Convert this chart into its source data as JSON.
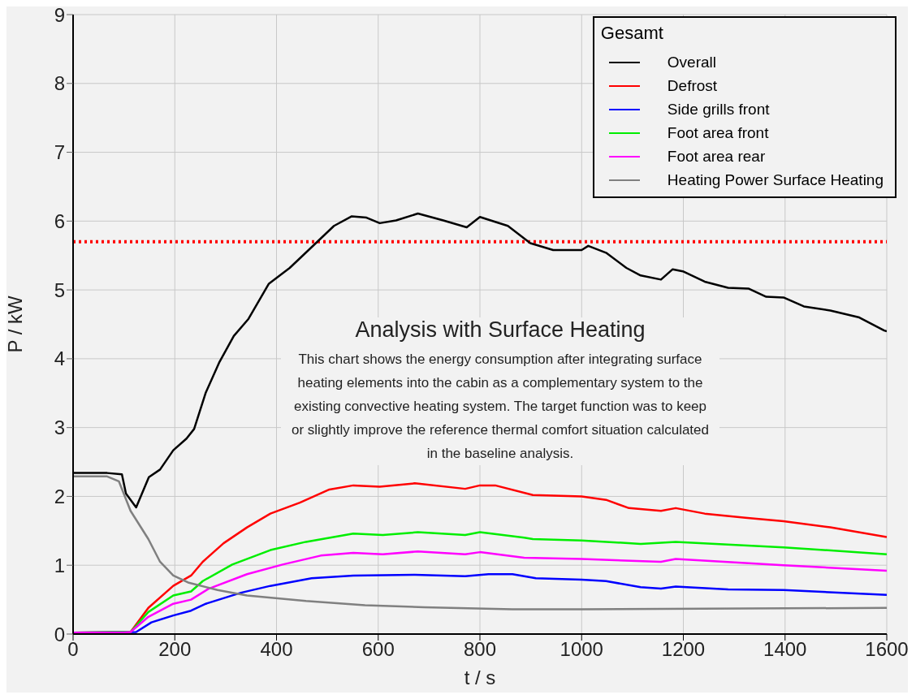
{
  "chart_data": {
    "type": "line",
    "xlabel": "t / s",
    "ylabel": "P / kW",
    "legend_title": "Gesamt",
    "legend": "top right",
    "grid": true,
    "line_style": "solid",
    "marker": "none",
    "xlim": [
      0,
      1600
    ],
    "xticks": [
      0,
      200,
      400,
      600,
      800,
      1000,
      1200,
      1400,
      1600
    ],
    "ylim": [
      0,
      9
    ],
    "yticks": [
      0,
      1,
      2,
      3,
      4,
      5,
      6,
      7,
      8,
      9
    ],
    "ref_lines": [
      {
        "axis": "y",
        "value": 5.7,
        "color": "#ff0000",
        "line_style": "dotted"
      }
    ],
    "annotations": [
      "Analysis with Surface Heating",
      "This chart shows the energy consumption after integrating surface heating elements into the cabin as a complementary system to the existing convective heating system. The target function was to keep or slightly improve the reference thermal comfort situation calculated in the baseline analysis."
    ],
    "series": [
      {
        "name": "Overall",
        "color": "#000000",
        "x": [
          0,
          67,
          96,
          104,
          124,
          149,
          171,
          197,
          223,
          238,
          261,
          287,
          316,
          345,
          385,
          426,
          466,
          513,
          548,
          577,
          603,
          635,
          678,
          728,
          774,
          800,
          855,
          899,
          944,
          1000,
          1013,
          1048,
          1088,
          1116,
          1156,
          1179,
          1199,
          1242,
          1288,
          1328,
          1363,
          1397,
          1437,
          1489,
          1546,
          1595,
          1600
        ],
        "values": [
          2.34,
          2.34,
          2.32,
          2.04,
          1.84,
          2.28,
          2.39,
          2.67,
          2.84,
          2.98,
          3.51,
          3.94,
          4.33,
          4.58,
          5.09,
          5.32,
          5.6,
          5.93,
          6.07,
          6.05,
          5.97,
          6.01,
          6.11,
          6.01,
          5.91,
          6.06,
          5.93,
          5.68,
          5.58,
          5.58,
          5.64,
          5.54,
          5.32,
          5.21,
          5.15,
          5.3,
          5.27,
          5.12,
          5.03,
          5.02,
          4.9,
          4.89,
          4.76,
          4.7,
          4.6,
          4.41,
          4.4
        ]
      },
      {
        "name": "Defrost",
        "color": "#ff0000",
        "x": [
          0,
          113,
          148,
          197,
          232,
          255,
          296,
          342,
          388,
          446,
          504,
          551,
          603,
          672,
          771,
          800,
          830,
          904,
          1000,
          1048,
          1093,
          1156,
          1185,
          1242,
          1322,
          1397,
          1489,
          1600
        ],
        "values": [
          0.02,
          0.03,
          0.38,
          0.7,
          0.85,
          1.05,
          1.32,
          1.55,
          1.75,
          1.91,
          2.1,
          2.16,
          2.14,
          2.19,
          2.11,
          2.16,
          2.16,
          2.02,
          2.0,
          1.95,
          1.83,
          1.79,
          1.83,
          1.75,
          1.69,
          1.64,
          1.55,
          1.41
        ]
      },
      {
        "name": "Side grills front",
        "color": "#0000ff",
        "x": [
          0,
          124,
          154,
          197,
          232,
          261,
          330,
          388,
          469,
          551,
          672,
          771,
          817,
          864,
          910,
          1000,
          1048,
          1116,
          1156,
          1185,
          1288,
          1397,
          1600
        ],
        "values": [
          0.02,
          0.03,
          0.17,
          0.27,
          0.34,
          0.44,
          0.6,
          0.7,
          0.81,
          0.85,
          0.86,
          0.84,
          0.87,
          0.87,
          0.81,
          0.79,
          0.77,
          0.68,
          0.66,
          0.69,
          0.65,
          0.64,
          0.57
        ]
      },
      {
        "name": "Foot area front",
        "color": "#00ee00",
        "x": [
          0,
          113,
          148,
          197,
          232,
          255,
          313,
          388,
          458,
          551,
          609,
          678,
          771,
          800,
          887,
          904,
          1000,
          1116,
          1185,
          1397,
          1600
        ],
        "values": [
          0.02,
          0.03,
          0.32,
          0.56,
          0.62,
          0.77,
          1.01,
          1.22,
          1.34,
          1.46,
          1.44,
          1.48,
          1.44,
          1.48,
          1.4,
          1.38,
          1.36,
          1.31,
          1.34,
          1.26,
          1.16
        ]
      },
      {
        "name": "Foot area rear",
        "color": "#ff00ff",
        "x": [
          0,
          100,
          113,
          148,
          197,
          232,
          267,
          342,
          412,
          487,
          551,
          609,
          678,
          771,
          800,
          887,
          1000,
          1156,
          1185,
          1397,
          1600
        ],
        "values": [
          0.02,
          0.02,
          0.03,
          0.25,
          0.44,
          0.5,
          0.66,
          0.87,
          1.01,
          1.14,
          1.18,
          1.16,
          1.2,
          1.16,
          1.19,
          1.11,
          1.09,
          1.05,
          1.09,
          1.0,
          0.92
        ]
      },
      {
        "name": "Heating Power Surface Heating",
        "color": "#808080",
        "x": [
          0,
          67,
          90,
          113,
          148,
          171,
          197,
          226,
          284,
          342,
          458,
          574,
          690,
          864,
          1000,
          1600
        ],
        "values": [
          2.29,
          2.29,
          2.22,
          1.79,
          1.38,
          1.05,
          0.85,
          0.75,
          0.64,
          0.56,
          0.48,
          0.42,
          0.39,
          0.36,
          0.36,
          0.38
        ]
      }
    ]
  }
}
